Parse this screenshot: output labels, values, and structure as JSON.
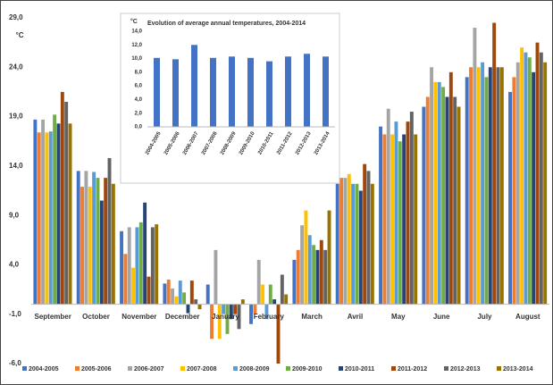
{
  "chart_data": [
    {
      "type": "bar",
      "y_label": "°C",
      "categories": [
        "September",
        "October",
        "November",
        "December",
        "January",
        "February",
        "March",
        "Avril",
        "May",
        "June",
        "July",
        "August"
      ],
      "series": [
        {
          "name": "2004-2005",
          "color": "#4472c4",
          "values": [
            18.7,
            13.5,
            7.4,
            2.1,
            2.0,
            -2.0,
            4.5,
            12.2,
            18.0,
            20.0,
            23.0,
            21.5
          ]
        },
        {
          "name": "2005-2006",
          "color": "#ed7d31",
          "values": [
            17.4,
            11.9,
            5.1,
            2.5,
            -3.5,
            -1.0,
            5.5,
            12.8,
            17.2,
            21.0,
            24.0,
            23.0
          ]
        },
        {
          "name": "2006-2007",
          "color": "#a5a5a5",
          "values": [
            18.7,
            13.5,
            7.8,
            1.6,
            5.5,
            4.5,
            8.0,
            12.8,
            19.8,
            24.0,
            28.0,
            24.5
          ]
        },
        {
          "name": "2007-2008",
          "color": "#ffc000",
          "values": [
            17.4,
            11.9,
            3.7,
            0.8,
            -3.5,
            2.0,
            9.5,
            13.2,
            17.2,
            22.5,
            24.0,
            26.0
          ]
        },
        {
          "name": "2008-2009",
          "color": "#5b9bd5",
          "values": [
            17.5,
            13.4,
            7.8,
            2.4,
            -1.0,
            -1.5,
            7.0,
            12.2,
            18.5,
            22.5,
            24.5,
            25.5
          ]
        },
        {
          "name": "2009-2010",
          "color": "#70ad47",
          "values": [
            19.2,
            12.8,
            8.3,
            1.2,
            -3.0,
            2.0,
            6.0,
            12.2,
            16.5,
            22.0,
            23.0,
            25.0
          ]
        },
        {
          "name": "2010-2011",
          "color": "#264478",
          "values": [
            18.3,
            10.5,
            10.3,
            -0.9,
            -1.5,
            0.5,
            5.5,
            11.5,
            17.2,
            21.0,
            24.0,
            23.5
          ]
        },
        {
          "name": "2011-2012",
          "color": "#9e480e",
          "values": [
            21.5,
            12.8,
            2.8,
            2.4,
            -1.0,
            -6.0,
            6.5,
            14.2,
            18.5,
            23.5,
            28.5,
            26.5
          ]
        },
        {
          "name": "2012-2013",
          "color": "#636363",
          "values": [
            20.5,
            14.8,
            7.8,
            0.5,
            -2.5,
            3.0,
            5.5,
            13.5,
            19.5,
            21.0,
            24.0,
            25.5
          ]
        },
        {
          "name": "2013-2014",
          "color": "#997300",
          "values": [
            18.3,
            12.2,
            8.1,
            -0.5,
            0.5,
            1.0,
            9.5,
            12.2,
            17.2,
            20.0,
            24.0,
            24.5
          ]
        }
      ],
      "ylim": [
        -6,
        29
      ],
      "yticks": [
        {
          "value": 29,
          "label": "29,0"
        },
        {
          "value": 24,
          "label": "24,0"
        },
        {
          "value": 19,
          "label": "19,0"
        },
        {
          "value": 14,
          "label": "14,0"
        },
        {
          "value": 9,
          "label": "9,0"
        },
        {
          "value": 4,
          "label": "4,0"
        },
        {
          "value": -1,
          "label": "-1,0"
        },
        {
          "value": -6,
          "label": "-6,0"
        }
      ],
      "legend": "bottom",
      "grid": false
    },
    {
      "type": "bar",
      "title": "Evolution of average annual temperatures, 2004-2014",
      "y_label": "°C",
      "categories": [
        "2004-2005",
        "2005-2006",
        "2006-2007",
        "2007-2008",
        "2008-2009",
        "2009-2010",
        "2010-2011",
        "2011-2012",
        "2012-2013",
        "2013-2014"
      ],
      "values": [
        10.1,
        9.9,
        12.0,
        10.1,
        10.3,
        10.1,
        9.6,
        10.3,
        10.7,
        10.3
      ],
      "color": "#4472c4",
      "ylim": [
        0,
        14
      ],
      "yticks": [
        {
          "value": 0,
          "label": "0,0"
        },
        {
          "value": 2,
          "label": "2,0"
        },
        {
          "value": 4,
          "label": "4,0"
        },
        {
          "value": 6,
          "label": "6,0"
        },
        {
          "value": 8,
          "label": "8,0"
        },
        {
          "value": 10,
          "label": "10,0"
        },
        {
          "value": 12,
          "label": "12,0"
        },
        {
          "value": 14,
          "label": "14,0"
        }
      ],
      "grid": false
    }
  ]
}
